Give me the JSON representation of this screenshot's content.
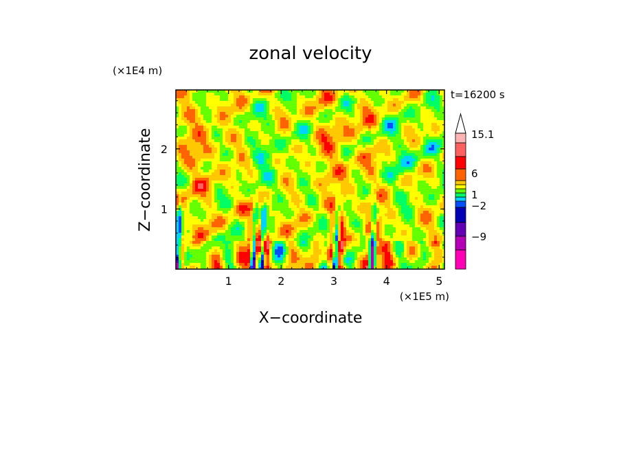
{
  "chart_data": {
    "type": "heatmap",
    "title": "zonal velocity",
    "xlabel": "X−coordinate",
    "ylabel": "Z−coordinate",
    "x_scale_label": "(×1E5 m)",
    "y_scale_label": "(×1E4 m)",
    "time_label": "t=16200 s",
    "xlim": [
      0,
      5.1
    ],
    "ylim": [
      0,
      2.98
    ],
    "x_ticks": [
      "1",
      "2",
      "3",
      "4",
      "5"
    ],
    "x_tick_values": [
      1,
      2,
      3,
      4,
      5
    ],
    "y_ticks": [
      "1",
      "2"
    ],
    "y_tick_values": [
      1,
      2
    ],
    "colorbar": {
      "levels": [
        "15.1",
        "6",
        "1",
        "−2",
        "−9"
      ],
      "colors": [
        "#ff00b4",
        "#b400b4",
        "#6400b4",
        "#0000b4",
        "#0050ff",
        "#00d2ff",
        "#00ff64",
        "#64ff00",
        "#ffff00",
        "#ffc800",
        "#ff6400",
        "#ff0000",
        "#ff6060",
        "#ffb4b4"
      ],
      "extend": "max"
    },
    "dark_streaks_x": [
      0.05,
      1.5,
      1.65,
      3.05,
      3.75
    ]
  }
}
